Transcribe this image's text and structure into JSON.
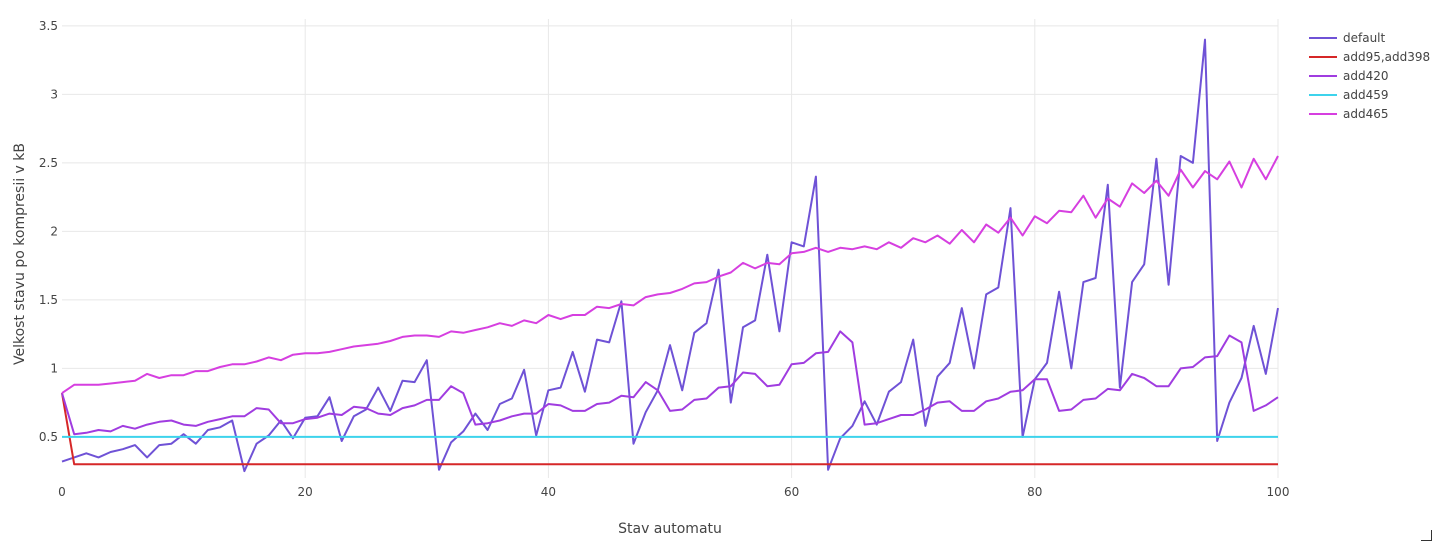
{
  "chart_data": {
    "type": "line",
    "xlabel": "Stav automatu",
    "ylabel": "Velkost stavu po kompresii v kB",
    "xlim": [
      0,
      100
    ],
    "ylim": [
      0.2,
      3.55
    ],
    "xticks": [
      0,
      20,
      40,
      60,
      80,
      100
    ],
    "yticks": [
      0.5,
      1,
      1.5,
      2,
      2.5,
      3,
      3.5
    ],
    "ytick_labels": [
      "0.5",
      "1",
      "1.5",
      "2",
      "2.5",
      "3",
      "3.5"
    ],
    "grid": true,
    "legend_position": "top-right",
    "series": [
      {
        "name": "default",
        "color": "#6f52d6",
        "x": [
          0,
          1,
          2,
          3,
          4,
          5,
          6,
          7,
          8,
          9,
          10,
          11,
          12,
          13,
          14,
          15,
          16,
          17,
          18,
          19,
          20,
          21,
          22,
          23,
          24,
          25,
          26,
          27,
          28,
          29,
          30,
          31,
          32,
          33,
          34,
          35,
          36,
          37,
          38,
          39,
          40,
          41,
          42,
          43,
          44,
          45,
          46,
          47,
          48,
          49,
          50,
          51,
          52,
          53,
          54,
          55,
          56,
          57,
          58,
          59,
          60,
          61,
          62,
          63,
          64,
          65,
          66,
          67,
          68,
          69,
          70,
          71,
          72,
          73,
          74,
          75,
          76,
          77,
          78,
          79,
          80,
          81,
          82,
          83,
          84,
          85,
          86,
          87,
          88,
          89,
          90,
          91,
          92,
          93,
          94,
          95,
          96,
          97,
          98,
          99,
          100
        ],
        "values": [
          0.32,
          0.35,
          0.38,
          0.35,
          0.39,
          0.41,
          0.44,
          0.35,
          0.44,
          0.45,
          0.52,
          0.45,
          0.55,
          0.57,
          0.62,
          0.25,
          0.45,
          0.51,
          0.62,
          0.49,
          0.64,
          0.65,
          0.79,
          0.47,
          0.65,
          0.7,
          0.86,
          0.69,
          0.91,
          0.9,
          1.06,
          0.26,
          0.46,
          0.54,
          0.67,
          0.55,
          0.74,
          0.78,
          0.99,
          0.51,
          0.84,
          0.86,
          1.12,
          0.83,
          1.21,
          1.19,
          1.49,
          0.45,
          0.68,
          0.84,
          1.17,
          0.84,
          1.26,
          1.33,
          1.72,
          0.75,
          1.3,
          1.35,
          1.83,
          1.27,
          1.92,
          1.89,
          2.4,
          0.26,
          0.49,
          0.58,
          0.76,
          0.59,
          0.83,
          0.9,
          1.21,
          0.58,
          0.94,
          1.04,
          1.44,
          1.0,
          1.54,
          1.59,
          2.17,
          0.5,
          0.92,
          1.04,
          1.56,
          1.0,
          1.63,
          1.66,
          2.34,
          0.86,
          1.63,
          1.76,
          2.53,
          1.61,
          2.55,
          2.5,
          3.4,
          0.47,
          0.75,
          0.93,
          1.31,
          0.96,
          1.44
        ]
      },
      {
        "name": "add95,add398",
        "color": "#d62728",
        "x": [
          0,
          1,
          100
        ],
        "values": [
          0.82,
          0.3,
          0.3
        ]
      },
      {
        "name": "add420",
        "color": "#a03ce0",
        "x": [
          0,
          1,
          2,
          3,
          4,
          5,
          6,
          7,
          8,
          9,
          10,
          11,
          12,
          13,
          14,
          15,
          16,
          17,
          18,
          19,
          20,
          21,
          22,
          23,
          24,
          25,
          26,
          27,
          28,
          29,
          30,
          31,
          32,
          33,
          34,
          35,
          36,
          37,
          38,
          39,
          40,
          41,
          42,
          43,
          44,
          45,
          46,
          47,
          48,
          49,
          50,
          51,
          52,
          53,
          54,
          55,
          56,
          57,
          58,
          59,
          60,
          61,
          62,
          63,
          64,
          65,
          66,
          67,
          68,
          69,
          70,
          71,
          72,
          73,
          74,
          75,
          76,
          77,
          78,
          79,
          80,
          81,
          82,
          83,
          84,
          85,
          86,
          87,
          88,
          89,
          90,
          91,
          92,
          93,
          94,
          95,
          96,
          97,
          98,
          99,
          100
        ],
        "values": [
          0.82,
          0.52,
          0.53,
          0.55,
          0.54,
          0.58,
          0.56,
          0.59,
          0.61,
          0.62,
          0.59,
          0.58,
          0.61,
          0.63,
          0.65,
          0.65,
          0.71,
          0.7,
          0.6,
          0.6,
          0.63,
          0.64,
          0.67,
          0.66,
          0.72,
          0.71,
          0.67,
          0.66,
          0.71,
          0.73,
          0.77,
          0.77,
          0.87,
          0.82,
          0.59,
          0.6,
          0.62,
          0.65,
          0.67,
          0.67,
          0.74,
          0.73,
          0.69,
          0.69,
          0.74,
          0.75,
          0.8,
          0.79,
          0.9,
          0.84,
          0.69,
          0.7,
          0.77,
          0.78,
          0.86,
          0.87,
          0.97,
          0.96,
          0.87,
          0.88,
          1.03,
          1.04,
          1.11,
          1.12,
          1.27,
          1.19,
          0.59,
          0.6,
          0.63,
          0.66,
          0.66,
          0.7,
          0.75,
          0.76,
          0.69,
          0.69,
          0.76,
          0.78,
          0.83,
          0.84,
          0.92,
          0.92,
          0.69,
          0.7,
          0.77,
          0.78,
          0.85,
          0.84,
          0.96,
          0.93,
          0.87,
          0.87,
          1.0,
          1.01,
          1.08,
          1.09,
          1.24,
          1.19,
          0.69,
          0.73,
          0.79
        ]
      },
      {
        "name": "add459",
        "color": "#3dd3ec",
        "x": [
          0,
          100
        ],
        "values": [
          0.5,
          0.5
        ]
      },
      {
        "name": "add465",
        "color": "#d63fe0",
        "x": [
          0,
          1,
          2,
          3,
          4,
          5,
          6,
          7,
          8,
          9,
          10,
          11,
          12,
          13,
          14,
          15,
          16,
          17,
          18,
          19,
          20,
          21,
          22,
          23,
          24,
          25,
          26,
          27,
          28,
          29,
          30,
          31,
          32,
          33,
          34,
          35,
          36,
          37,
          38,
          39,
          40,
          41,
          42,
          43,
          44,
          45,
          46,
          47,
          48,
          49,
          50,
          51,
          52,
          53,
          54,
          55,
          56,
          57,
          58,
          59,
          60,
          61,
          62,
          63,
          64,
          65,
          66,
          67,
          68,
          69,
          70,
          71,
          72,
          73,
          74,
          75,
          76,
          77,
          78,
          79,
          80,
          81,
          82,
          83,
          84,
          85,
          86,
          87,
          88,
          89,
          90,
          91,
          92,
          93,
          94,
          95,
          96,
          97,
          98,
          99,
          100
        ],
        "values": [
          0.82,
          0.88,
          0.88,
          0.88,
          0.89,
          0.9,
          0.91,
          0.96,
          0.93,
          0.95,
          0.95,
          0.98,
          0.98,
          1.01,
          1.03,
          1.03,
          1.05,
          1.08,
          1.06,
          1.1,
          1.11,
          1.11,
          1.12,
          1.14,
          1.16,
          1.17,
          1.18,
          1.2,
          1.23,
          1.24,
          1.24,
          1.23,
          1.27,
          1.26,
          1.28,
          1.3,
          1.33,
          1.31,
          1.35,
          1.33,
          1.39,
          1.36,
          1.39,
          1.39,
          1.45,
          1.44,
          1.47,
          1.46,
          1.52,
          1.54,
          1.55,
          1.58,
          1.62,
          1.63,
          1.67,
          1.7,
          1.77,
          1.73,
          1.77,
          1.76,
          1.84,
          1.85,
          1.88,
          1.85,
          1.88,
          1.87,
          1.89,
          1.87,
          1.92,
          1.88,
          1.95,
          1.92,
          1.97,
          1.91,
          2.01,
          1.92,
          2.05,
          1.99,
          2.1,
          1.97,
          2.11,
          2.06,
          2.15,
          2.14,
          2.26,
          2.1,
          2.24,
          2.18,
          2.35,
          2.28,
          2.37,
          2.26,
          2.45,
          2.32,
          2.44,
          2.38,
          2.51,
          2.32,
          2.53,
          2.38,
          2.55
        ]
      }
    ]
  }
}
